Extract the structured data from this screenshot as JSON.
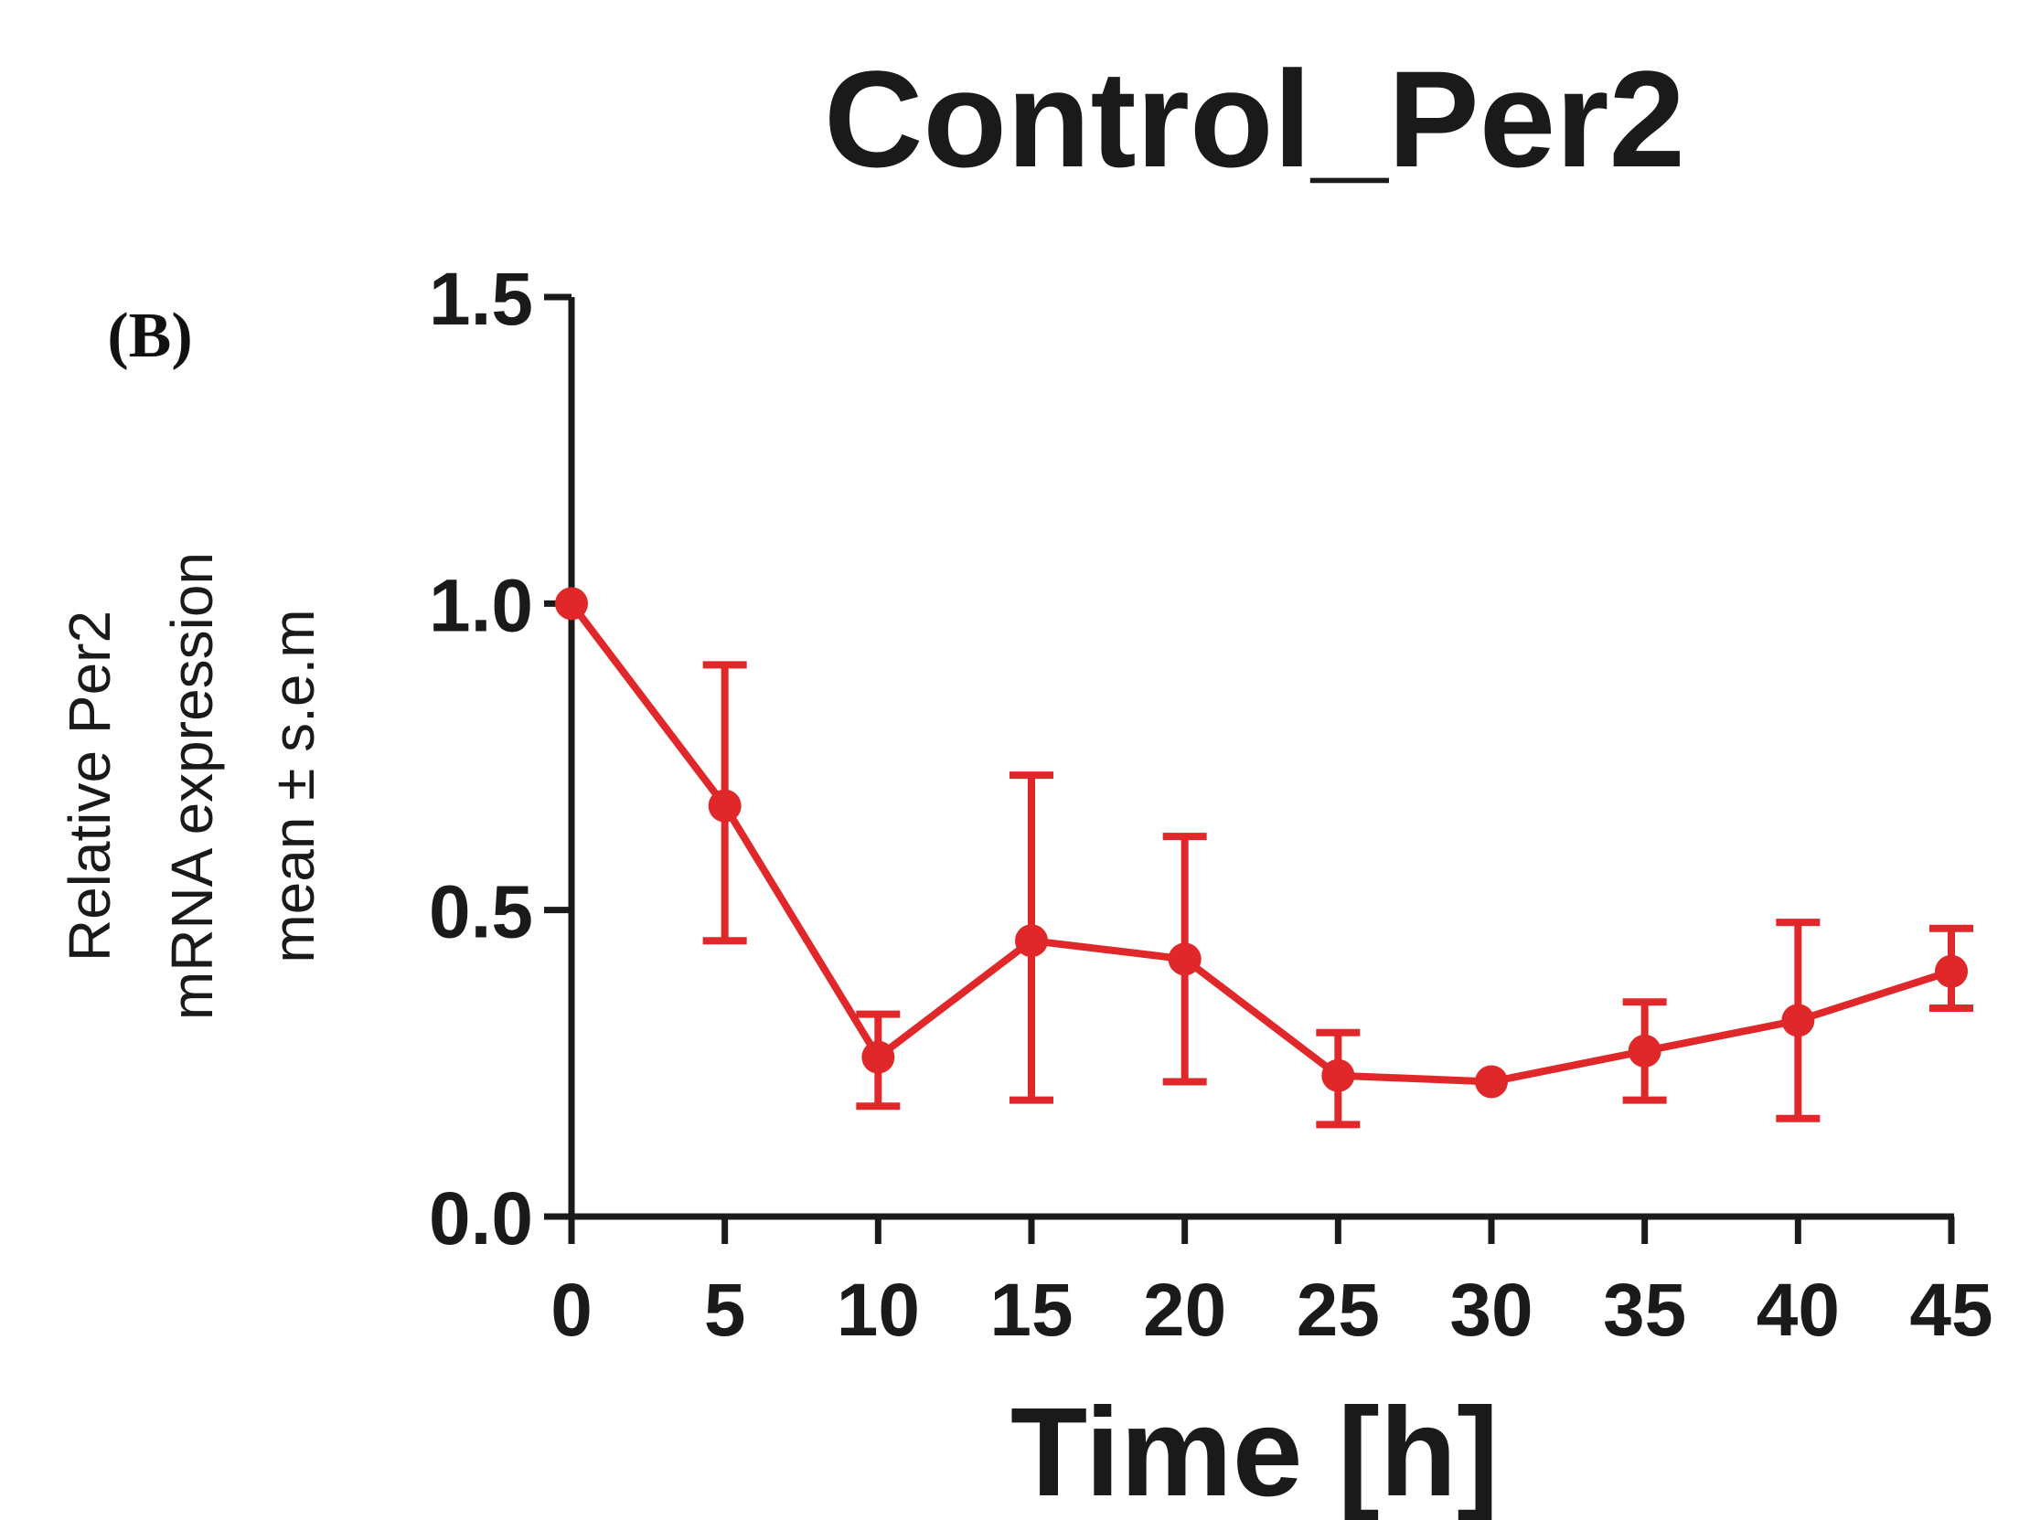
{
  "chart_data": {
    "type": "line",
    "title": "Control_Per2",
    "panel_label": "(B)",
    "xlabel": "Time [h]",
    "ylabel_lines": [
      "Relative Per2",
      "mRNA expression",
      "mean ± s.e.m"
    ],
    "xlim": [
      0,
      45
    ],
    "ylim": [
      0,
      1.5
    ],
    "xticks": [
      0,
      5,
      10,
      15,
      20,
      25,
      30,
      35,
      40,
      45
    ],
    "xtick_labels": [
      "0",
      "5",
      "10",
      "15",
      "20",
      "25",
      "30",
      "35",
      "40",
      "45"
    ],
    "yticks": [
      0.0,
      0.5,
      1.0,
      1.5
    ],
    "ytick_labels": [
      "0.0",
      "0.5",
      "1.0",
      "1.5"
    ],
    "series": [
      {
        "name": "Control_Per2",
        "color": "#e0282b",
        "x": [
          0,
          5,
          10,
          15,
          20,
          25,
          30,
          35,
          40,
          45
        ],
        "y": [
          1.0,
          0.67,
          0.26,
          0.45,
          0.42,
          0.23,
          0.22,
          0.27,
          0.32,
          0.4
        ],
        "err_low": [
          1.0,
          0.45,
          0.18,
          0.19,
          0.22,
          0.15,
          0.22,
          0.19,
          0.16,
          0.34
        ],
        "err_high": [
          1.0,
          0.9,
          0.33,
          0.72,
          0.62,
          0.3,
          0.22,
          0.35,
          0.48,
          0.47
        ]
      }
    ]
  }
}
